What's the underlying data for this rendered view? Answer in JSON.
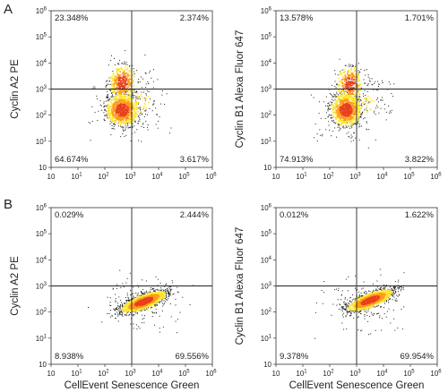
{
  "panels": [
    {
      "id": "A",
      "label": "A"
    },
    {
      "id": "B",
      "label": "B"
    }
  ],
  "chart_data": [
    {
      "type": "scatter",
      "panel": "A",
      "xlabel": "",
      "ylabel": "Cyclin A2 PE",
      "xscale": "log",
      "yscale": "log",
      "xlim": [
        10,
        1000000
      ],
      "ylim": [
        10,
        1000000
      ],
      "x_ticks": [
        "10",
        "10^1",
        "10^2",
        "10^3",
        "10^4",
        "10^5",
        "10^6"
      ],
      "y_ticks": [
        "10",
        "10^1",
        "10^2",
        "10^3",
        "10^4",
        "10^5",
        "10^6"
      ],
      "gate": {
        "x": 1000,
        "y": 1000
      },
      "quadrants": {
        "upper_left": "23.348%",
        "upper_right": "2.374%",
        "lower_left": "64.674%",
        "lower_right": "3.617%"
      },
      "populations": [
        {
          "x_log": 2.65,
          "y_log": 2.2,
          "sx": 0.32,
          "sy": 0.32,
          "weight": 0.62
        },
        {
          "x_log": 2.65,
          "y_log": 3.25,
          "sx": 0.25,
          "sy": 0.35,
          "weight": 0.3
        },
        {
          "x_log": 3.3,
          "y_log": 2.5,
          "sx": 0.5,
          "sy": 0.6,
          "weight": 0.08
        }
      ],
      "colors": {
        "dense": "#e8411c",
        "mid": "#ff9a1a",
        "light": "#ffe52a",
        "sparse": "#1a1a1a"
      }
    },
    {
      "type": "scatter",
      "panel": "A",
      "xlabel": "",
      "ylabel": "Cyclin B1 Alexa Fluor 647",
      "xscale": "log",
      "yscale": "log",
      "xlim": [
        10,
        1000000
      ],
      "ylim": [
        10,
        1000000
      ],
      "x_ticks": [
        "10",
        "10^1",
        "10^2",
        "10^3",
        "10^4",
        "10^5",
        "10^6"
      ],
      "y_ticks": [
        "10",
        "10^1",
        "10^2",
        "10^3",
        "10^4",
        "10^5",
        "10^6"
      ],
      "gate": {
        "x": 1000,
        "y": 1000
      },
      "quadrants": {
        "upper_left": "13.578%",
        "upper_right": "1.701%",
        "lower_left": "74.913%",
        "lower_right": "3.822%"
      },
      "populations": [
        {
          "x_log": 2.6,
          "y_log": 2.2,
          "sx": 0.3,
          "sy": 0.33,
          "weight": 0.68
        },
        {
          "x_log": 2.75,
          "y_log": 3.2,
          "sx": 0.25,
          "sy": 0.35,
          "weight": 0.24
        },
        {
          "x_log": 3.3,
          "y_log": 2.6,
          "sx": 0.5,
          "sy": 0.6,
          "weight": 0.08
        }
      ],
      "colors": {
        "dense": "#e8411c",
        "mid": "#ff9a1a",
        "light": "#ffe52a",
        "sparse": "#1a1a1a"
      }
    },
    {
      "type": "scatter",
      "panel": "B",
      "xlabel": "CellEvent Senescence Green",
      "ylabel": "Cyclin A2 PE",
      "xscale": "log",
      "yscale": "log",
      "xlim": [
        10,
        1000000
      ],
      "ylim": [
        10,
        1000000
      ],
      "x_ticks": [
        "10",
        "10^1",
        "10^2",
        "10^3",
        "10^4",
        "10^5",
        "10^6"
      ],
      "y_ticks": [
        "10",
        "10^1",
        "10^2",
        "10^3",
        "10^4",
        "10^5",
        "10^6"
      ],
      "gate": {
        "x": 1000,
        "y": 1000
      },
      "quadrants": {
        "upper_left": "0.029%",
        "upper_right": "2.444%",
        "lower_left": "8.938%",
        "lower_right": "69.556%"
      },
      "populations": [
        {
          "x_log": 3.45,
          "y_log": 2.4,
          "sx": 0.45,
          "sy": 0.22,
          "rho": 0.75,
          "weight": 0.92
        },
        {
          "x_log": 3.3,
          "y_log": 2.3,
          "sx": 0.7,
          "sy": 0.45,
          "weight": 0.08
        }
      ],
      "colors": {
        "dense": "#e8411c",
        "mid": "#ff9a1a",
        "light": "#ffe52a",
        "sparse": "#1a1a1a"
      }
    },
    {
      "type": "scatter",
      "panel": "B",
      "xlabel": "CellEvent Senescence Green",
      "ylabel": "Cyclin B1 Alexa Fluor 647",
      "xscale": "log",
      "yscale": "log",
      "xlim": [
        10,
        1000000
      ],
      "ylim": [
        10,
        1000000
      ],
      "x_ticks": [
        "10",
        "10^1",
        "10^2",
        "10^3",
        "10^4",
        "10^5",
        "10^6"
      ],
      "y_ticks": [
        "10",
        "10^1",
        "10^2",
        "10^3",
        "10^4",
        "10^5",
        "10^6"
      ],
      "gate": {
        "x": 1000,
        "y": 1000
      },
      "quadrants": {
        "upper_left": "0.012%",
        "upper_right": "1.622%",
        "lower_left": "9.378%",
        "lower_right": "69.954%"
      },
      "populations": [
        {
          "x_log": 3.5,
          "y_log": 2.45,
          "sx": 0.45,
          "sy": 0.22,
          "rho": 0.75,
          "weight": 0.92
        },
        {
          "x_log": 3.3,
          "y_log": 2.35,
          "sx": 0.7,
          "sy": 0.45,
          "weight": 0.08
        }
      ],
      "colors": {
        "dense": "#e8411c",
        "mid": "#ff9a1a",
        "light": "#ffe52a",
        "sparse": "#1a1a1a"
      }
    }
  ]
}
